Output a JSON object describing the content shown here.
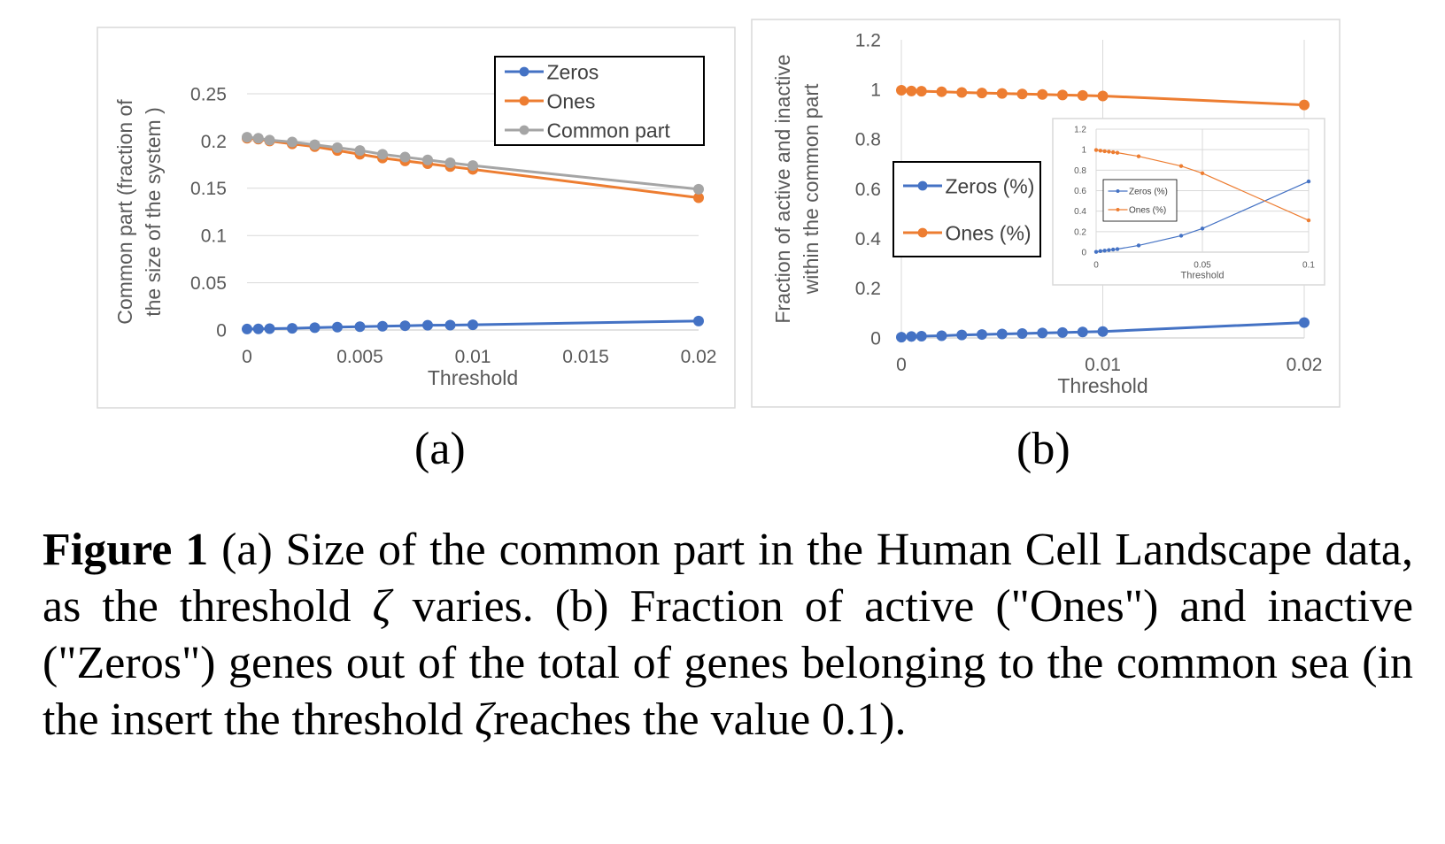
{
  "colors": {
    "zeros": "#4472C4",
    "ones": "#ED7D31",
    "common": "#A5A5A5"
  },
  "panels": {
    "a_label": "(a)",
    "b_label": "(b)"
  },
  "caption": {
    "figure_label": "Figure 1",
    "text_1": "(a) Size of the common part in the Human Cell Landscape data, as the threshold",
    "zeta_1": "ζ",
    "text_2": "varies. (b) Fraction of active (\"Ones\") and inactive (\"Zeros\") genes out of the total of genes belonging to the common sea (in the insert the threshold",
    "zeta_2": "ζ",
    "text_3": "reaches the value 0.1)."
  },
  "chart_data": [
    {
      "id": "a",
      "type": "line",
      "title": "",
      "xlabel": "Threshold",
      "ylabel_lines": [
        "Common part (fraction of",
        "the size of the system )"
      ],
      "xlim": [
        0,
        0.02
      ],
      "ylim": [
        0,
        0.25
      ],
      "xticks": [
        0,
        0.005,
        0.01,
        0.015,
        0.02
      ],
      "xtick_labels": [
        "0",
        "0.005",
        "0.01",
        "0.015",
        "0.02"
      ],
      "yticks": [
        0,
        0.05,
        0.1,
        0.15,
        0.2,
        0.25
      ],
      "ytick_labels": [
        "0",
        "0.05",
        "0.1",
        "0.15",
        "0.2",
        "0.25"
      ],
      "grid": "horizontal",
      "legend": "top-right",
      "x": [
        0,
        0.0005,
        0.001,
        0.002,
        0.003,
        0.004,
        0.005,
        0.006,
        0.007,
        0.008,
        0.009,
        0.01,
        0.02
      ],
      "series": [
        {
          "name": "Zeros",
          "color_key": "zeros",
          "values": [
            0.001,
            0.0012,
            0.0014,
            0.0018,
            0.0025,
            0.003,
            0.0035,
            0.004,
            0.0045,
            0.005,
            0.0052,
            0.0055,
            0.0095
          ]
        },
        {
          "name": "Ones",
          "color_key": "ones",
          "values": [
            0.203,
            0.202,
            0.2,
            0.197,
            0.194,
            0.19,
            0.186,
            0.182,
            0.179,
            0.176,
            0.173,
            0.17,
            0.14
          ]
        },
        {
          "name": "Common part",
          "color_key": "common",
          "values": [
            0.204,
            0.203,
            0.201,
            0.199,
            0.196,
            0.193,
            0.19,
            0.186,
            0.183,
            0.18,
            0.177,
            0.174,
            0.149
          ]
        }
      ]
    },
    {
      "id": "b",
      "type": "line",
      "title": "",
      "xlabel": "Threshold",
      "ylabel_lines": [
        "Fraction of active and inactive",
        "within the common part"
      ],
      "xlim": [
        0,
        0.02
      ],
      "ylim": [
        0,
        1.2
      ],
      "xticks": [
        0,
        0.01,
        0.02
      ],
      "xtick_labels": [
        "0",
        "0.01",
        "0.02"
      ],
      "yticks": [
        0,
        0.2,
        0.4,
        0.6,
        0.8,
        1,
        1.2
      ],
      "ytick_labels": [
        "0",
        "0.2",
        "0.4",
        "0.6",
        "0.8",
        "1",
        "1.2"
      ],
      "grid": "vertical",
      "legend": "left",
      "x": [
        0,
        0.0005,
        0.001,
        0.002,
        0.003,
        0.004,
        0.005,
        0.006,
        0.007,
        0.008,
        0.009,
        0.01,
        0.02
      ],
      "series": [
        {
          "name": "Zeros (%)",
          "color_key": "zeros",
          "values": [
            0.003,
            0.006,
            0.007,
            0.009,
            0.012,
            0.014,
            0.016,
            0.018,
            0.02,
            0.022,
            0.024,
            0.026,
            0.062
          ]
        },
        {
          "name": "Ones (%)",
          "color_key": "ones",
          "values": [
            0.997,
            0.994,
            0.993,
            0.991,
            0.988,
            0.986,
            0.984,
            0.982,
            0.98,
            0.978,
            0.976,
            0.974,
            0.938
          ]
        }
      ],
      "inset": {
        "type": "line",
        "xlabel": "Threshold",
        "xlim": [
          0,
          0.1
        ],
        "ylim": [
          0,
          1.2
        ],
        "xticks": [
          0,
          0.05,
          0.1
        ],
        "xtick_labels": [
          "0",
          "0.05",
          "0.1"
        ],
        "yticks": [
          0,
          0.2,
          0.4,
          0.6,
          0.8,
          1,
          1.2
        ],
        "ytick_labels": [
          "0",
          "0.2",
          "0.4",
          "0.6",
          "0.8",
          "1",
          "1.2"
        ],
        "grid": "both",
        "legend": "top-left",
        "x": [
          0,
          0.002,
          0.004,
          0.006,
          0.008,
          0.01,
          0.02,
          0.04,
          0.05,
          0.1
        ],
        "series": [
          {
            "name": "Zeros (%)",
            "color_key": "zeros",
            "values": [
              0.003,
              0.01,
              0.015,
              0.02,
              0.025,
              0.03,
              0.065,
              0.16,
              0.23,
              0.69
            ]
          },
          {
            "name": "Ones (%)",
            "color_key": "ones",
            "values": [
              0.997,
              0.99,
              0.985,
              0.98,
              0.975,
              0.97,
              0.935,
              0.84,
              0.77,
              0.31
            ]
          }
        ]
      }
    }
  ]
}
